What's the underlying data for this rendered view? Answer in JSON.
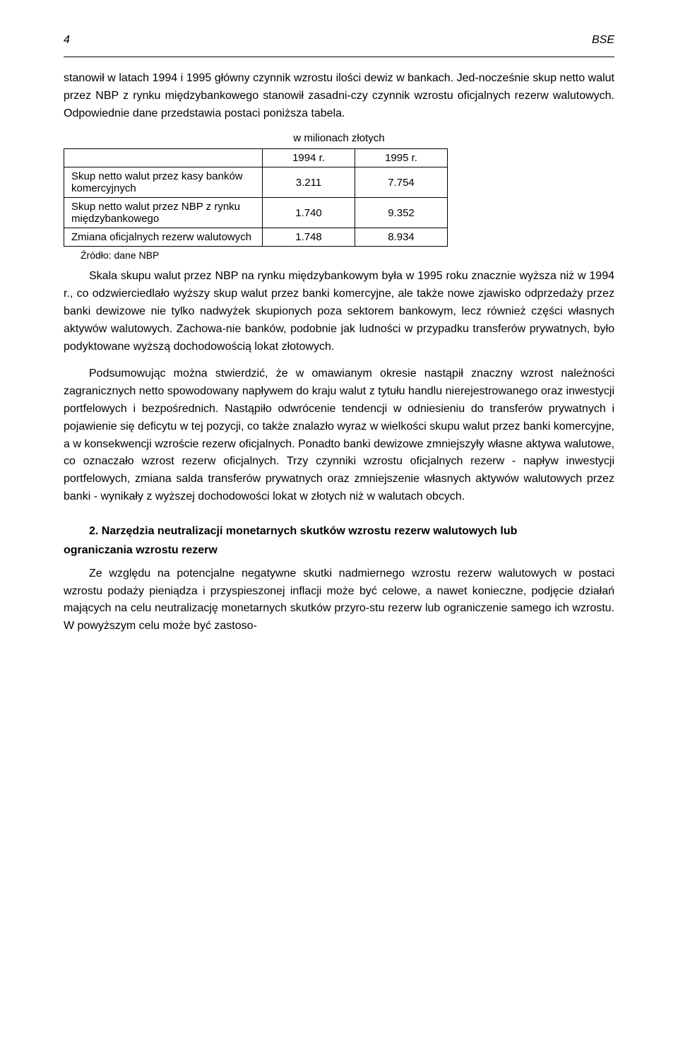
{
  "header": {
    "page_number": "4",
    "bse": "BSE"
  },
  "p1": "stanowił w latach 1994 i 1995 główny czynnik wzrostu ilości dewiz w bankach. Jed-nocześnie skup netto walut przez NBP z rynku międzybankowego stanowił zasadni-czy czynnik wzrostu oficjalnych rezerw walutowych. Odpowiednie dane przedstawia postaci poniższa tabela.",
  "table": {
    "caption": "w milionach złotych",
    "col1": "1994 r.",
    "col2": "1995 r.",
    "rows": [
      {
        "label": "Skup netto walut przez kasy banków komercyjnych",
        "v1": "3.211",
        "v2": "7.754"
      },
      {
        "label": "Skup netto walut przez NBP z rynku międzybankowego",
        "v1": "1.740",
        "v2": "9.352"
      },
      {
        "label": "Zmiana oficjalnych rezerw walutowych",
        "v1": "1.748",
        "v2": "8.934"
      }
    ],
    "source": "Źródło: dane NBP"
  },
  "p2": "Skala skupu walut przez NBP na rynku międzybankowym była w 1995 roku znacznie wyższa niż w 1994 r., co odzwierciedlało wyższy skup walut przez banki komercyjne, ale także nowe zjawisko odprzedaży przez banki dewizowe nie tylko nadwyżek skupionych poza sektorem bankowym, lecz również części własnych aktywów walutowych. Zachowa-nie banków, podobnie jak ludności w przypadku transferów prywatnych, było podyktowane wyższą dochodowością lokat złotowych.",
  "p3": "Podsumowując można stwierdzić, że w omawianym okresie nastąpił znaczny wzrost należności zagranicznych netto spowodowany napływem do kraju walut z tytułu handlu nierejestrowanego oraz inwestycji portfelowych i bezpośrednich. Nastąpiło odwrócenie tendencji w odniesieniu do transferów prywatnych i pojawienie się deficytu w tej pozycji, co także znalazło wyraz w wielkości skupu walut przez banki komercyjne, a w konsekwencji wzroście rezerw oficjalnych. Ponadto banki dewizowe zmniejszyły własne aktywa walutowe, co oznaczało wzrost rezerw oficjalnych. Trzy czynniki wzrostu oficjalnych rezerw - napływ inwestycji portfelowych, zmiana salda transferów prywatnych oraz zmniejszenie własnych aktywów walutowych przez banki - wynikały z wyższej dochodowości lokat w złotych niż w walutach obcych.",
  "heading_line1": "2. Narzędzia neutralizacji monetarnych skutków wzrostu rezerw walutowych lub",
  "heading_line2": "ograniczania wzrostu rezerw",
  "p4": "Ze względu na potencjalne negatywne skutki nadmiernego wzrostu rezerw walutowych w postaci wzrostu podaży pieniądza i przyspieszonej inflacji może być celowe, a nawet konieczne, podjęcie działań mających na celu neutralizację monetarnych skutków przyro-stu rezerw lub ograniczenie samego ich wzrostu. W powyższym celu może być zastoso-"
}
